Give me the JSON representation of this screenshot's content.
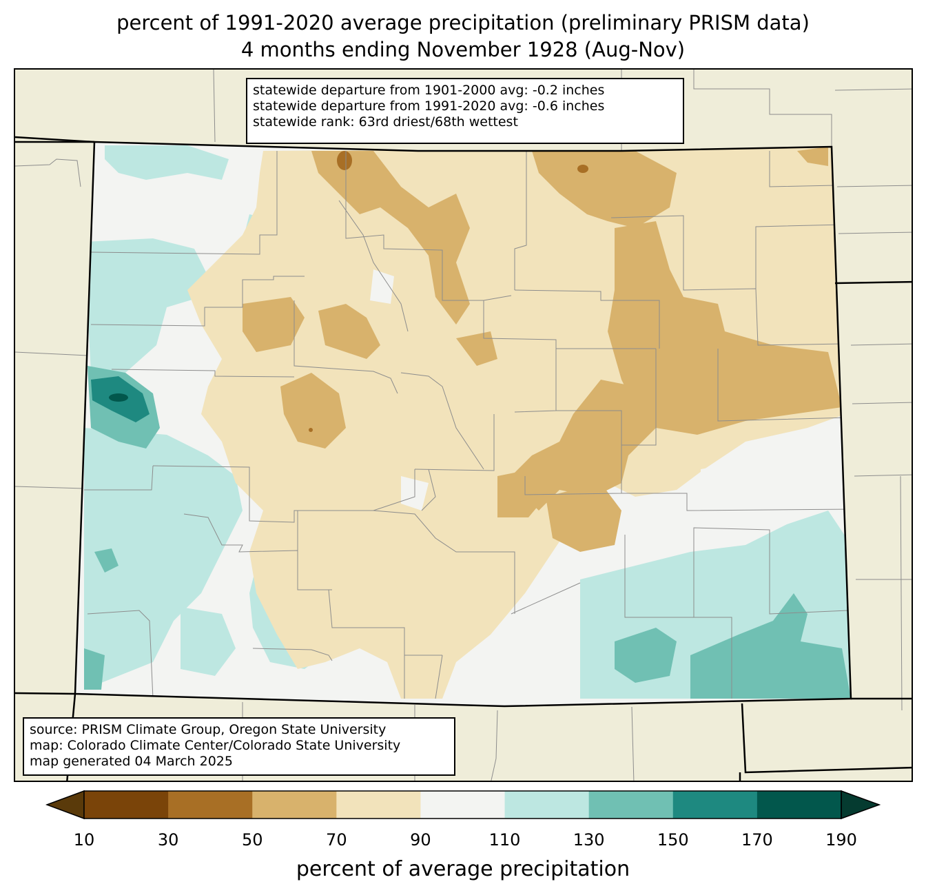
{
  "title": {
    "line1": "percent of 1991-2020 average precipitation (preliminary PRISM data)",
    "line2": "4 months ending November 1928 (Aug-Nov)"
  },
  "stats": {
    "line1": "statewide departure from 1901-2000 avg: -0.2 inches",
    "line2": "statewide departure from 1991-2020 avg: -0.6 inches",
    "line3": "statewide rank: 63rd driest/68th wettest"
  },
  "source": {
    "line1": "source: PRISM Climate Group, Oregon State University",
    "line2": "map: Colorado Climate Center/Colorado State University",
    "line3": "map generated 04 March 2025"
  },
  "colorbar": {
    "label": "percent of average precipitation",
    "ticks": [
      "10",
      "30",
      "50",
      "70",
      "90",
      "110",
      "130",
      "150",
      "170",
      "190"
    ],
    "bin_colors": [
      "#5a3a0a",
      "#7a4409",
      "#a86f25",
      "#d8b26c",
      "#f2e3bb",
      "#f3f4f2",
      "#bde7e1",
      "#70c0b3",
      "#1e8980",
      "#02574c",
      "#053b30"
    ]
  },
  "colors": {
    "background_land": "#efedd9",
    "state_border": "#000000",
    "county_border": "#8c8c8c"
  }
}
